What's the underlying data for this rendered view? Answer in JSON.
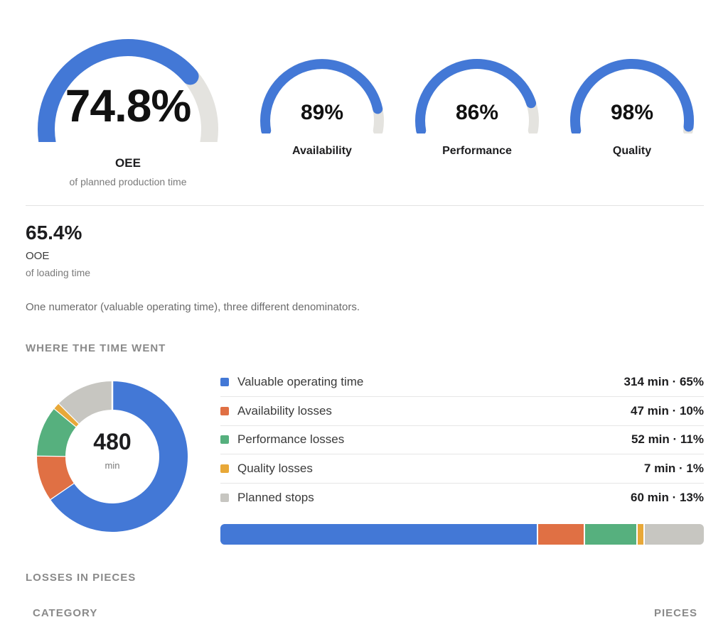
{
  "oee": {
    "value": "74.8%",
    "label": "OEE",
    "sublabel": "of planned production time",
    "fraction": 0.748
  },
  "factors": [
    {
      "name": "availability",
      "value": "89%",
      "label": "Availability",
      "fraction": 0.89
    },
    {
      "name": "performance",
      "value": "86%",
      "label": "Performance",
      "fraction": 0.86
    },
    {
      "name": "quality",
      "value": "98%",
      "label": "Quality",
      "fraction": 0.98
    }
  ],
  "ooe": {
    "value": "65.4%",
    "label": "OOE",
    "sublabel": "of loading time"
  },
  "note": "One numerator (valuable operating time), three different denominators.",
  "time_section": {
    "title": "WHERE THE TIME WENT",
    "total": "480",
    "total_unit": "min",
    "items": [
      {
        "name": "Valuable operating time",
        "value": "314 min · 65%",
        "minutes": 314,
        "color": "#4378d6"
      },
      {
        "name": "Availability losses",
        "value": "47 min · 10%",
        "minutes": 47,
        "color": "#e07044"
      },
      {
        "name": "Performance losses",
        "value": "52 min · 11%",
        "minutes": 52,
        "color": "#56b07e"
      },
      {
        "name": "Quality losses",
        "value": "7 min · 1%",
        "minutes": 7,
        "color": "#e8a838"
      },
      {
        "name": "Planned stops",
        "value": "60 min · 13%",
        "minutes": 60,
        "color": "#c7c6c1"
      }
    ]
  },
  "pieces_section": {
    "title": "LOSSES IN PIECES",
    "col_category": "CATEGORY",
    "col_pieces": "PIECES"
  },
  "colors": {
    "accent": "#4378d6",
    "track": "#e4e3df"
  }
}
